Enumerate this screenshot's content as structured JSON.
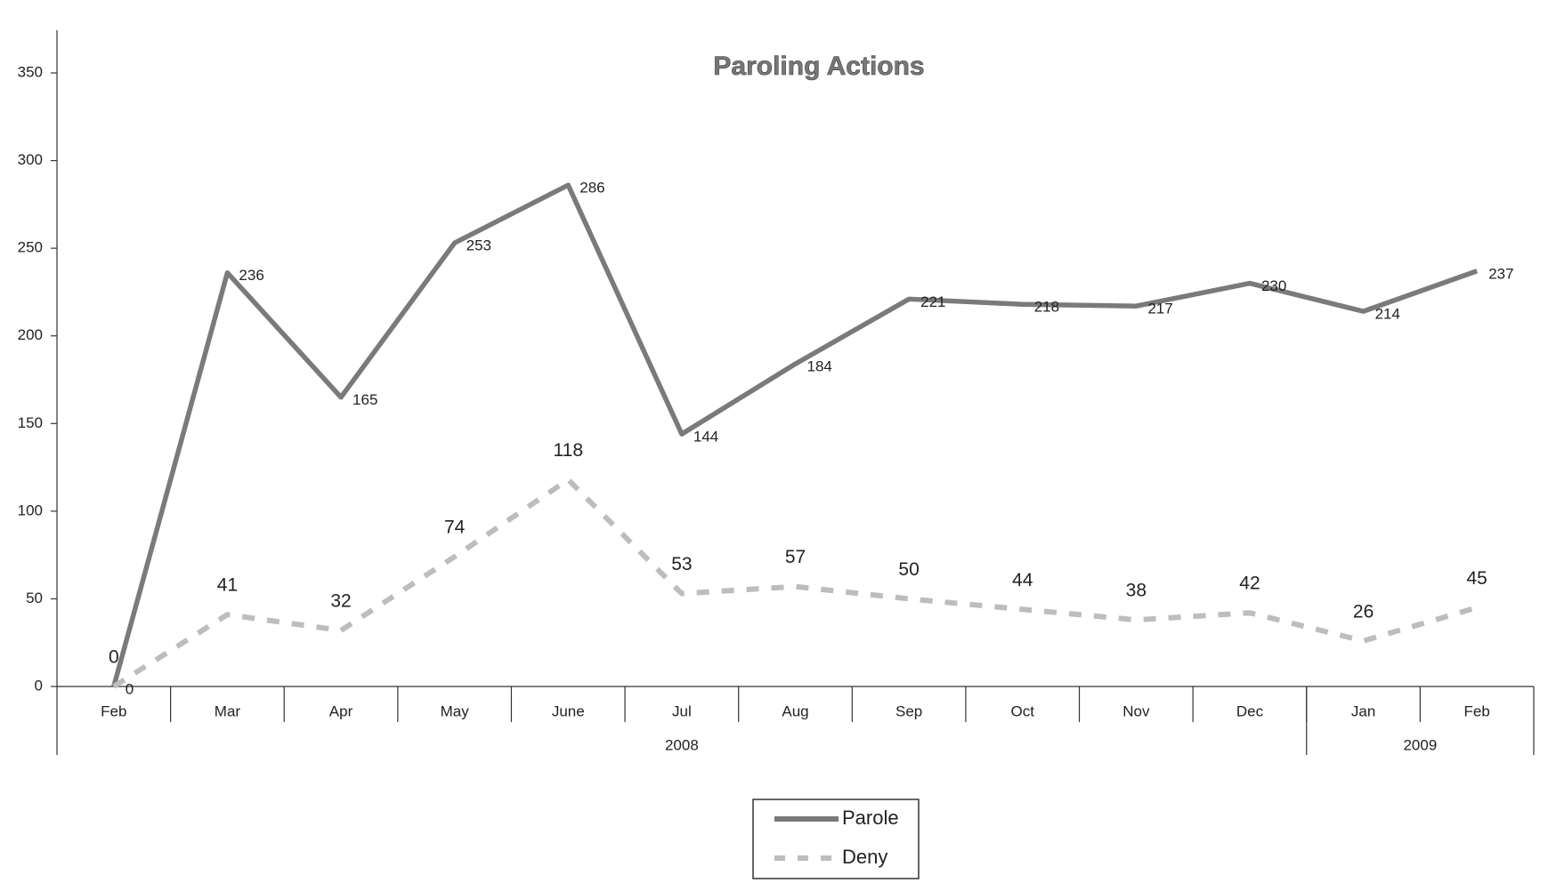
{
  "chart_data": {
    "type": "line",
    "title": "Paroling Actions",
    "categories": [
      "Feb",
      "Mar",
      "Apr",
      "May",
      "June",
      "Jul",
      "Aug",
      "Sep",
      "Oct",
      "Nov",
      "Dec",
      "Jan",
      "Feb"
    ],
    "x_groups": [
      {
        "label": "2008",
        "span": 11
      },
      {
        "label": "2009",
        "span": 2
      }
    ],
    "series": [
      {
        "name": "Parole",
        "color": "#7a7a7a",
        "dashed": false,
        "values": [
          0,
          236,
          165,
          253,
          286,
          144,
          184,
          221,
          218,
          217,
          230,
          214,
          237
        ]
      },
      {
        "name": "Deny",
        "color": "#bdbdbd",
        "dashed": true,
        "values": [
          0,
          41,
          32,
          74,
          118,
          53,
          57,
          50,
          44,
          38,
          42,
          26,
          45
        ]
      }
    ],
    "ylim": [
      0,
      350
    ],
    "yticks": [
      0,
      50,
      100,
      150,
      200,
      250,
      300,
      350
    ],
    "grid": false,
    "legend": "bottom"
  }
}
